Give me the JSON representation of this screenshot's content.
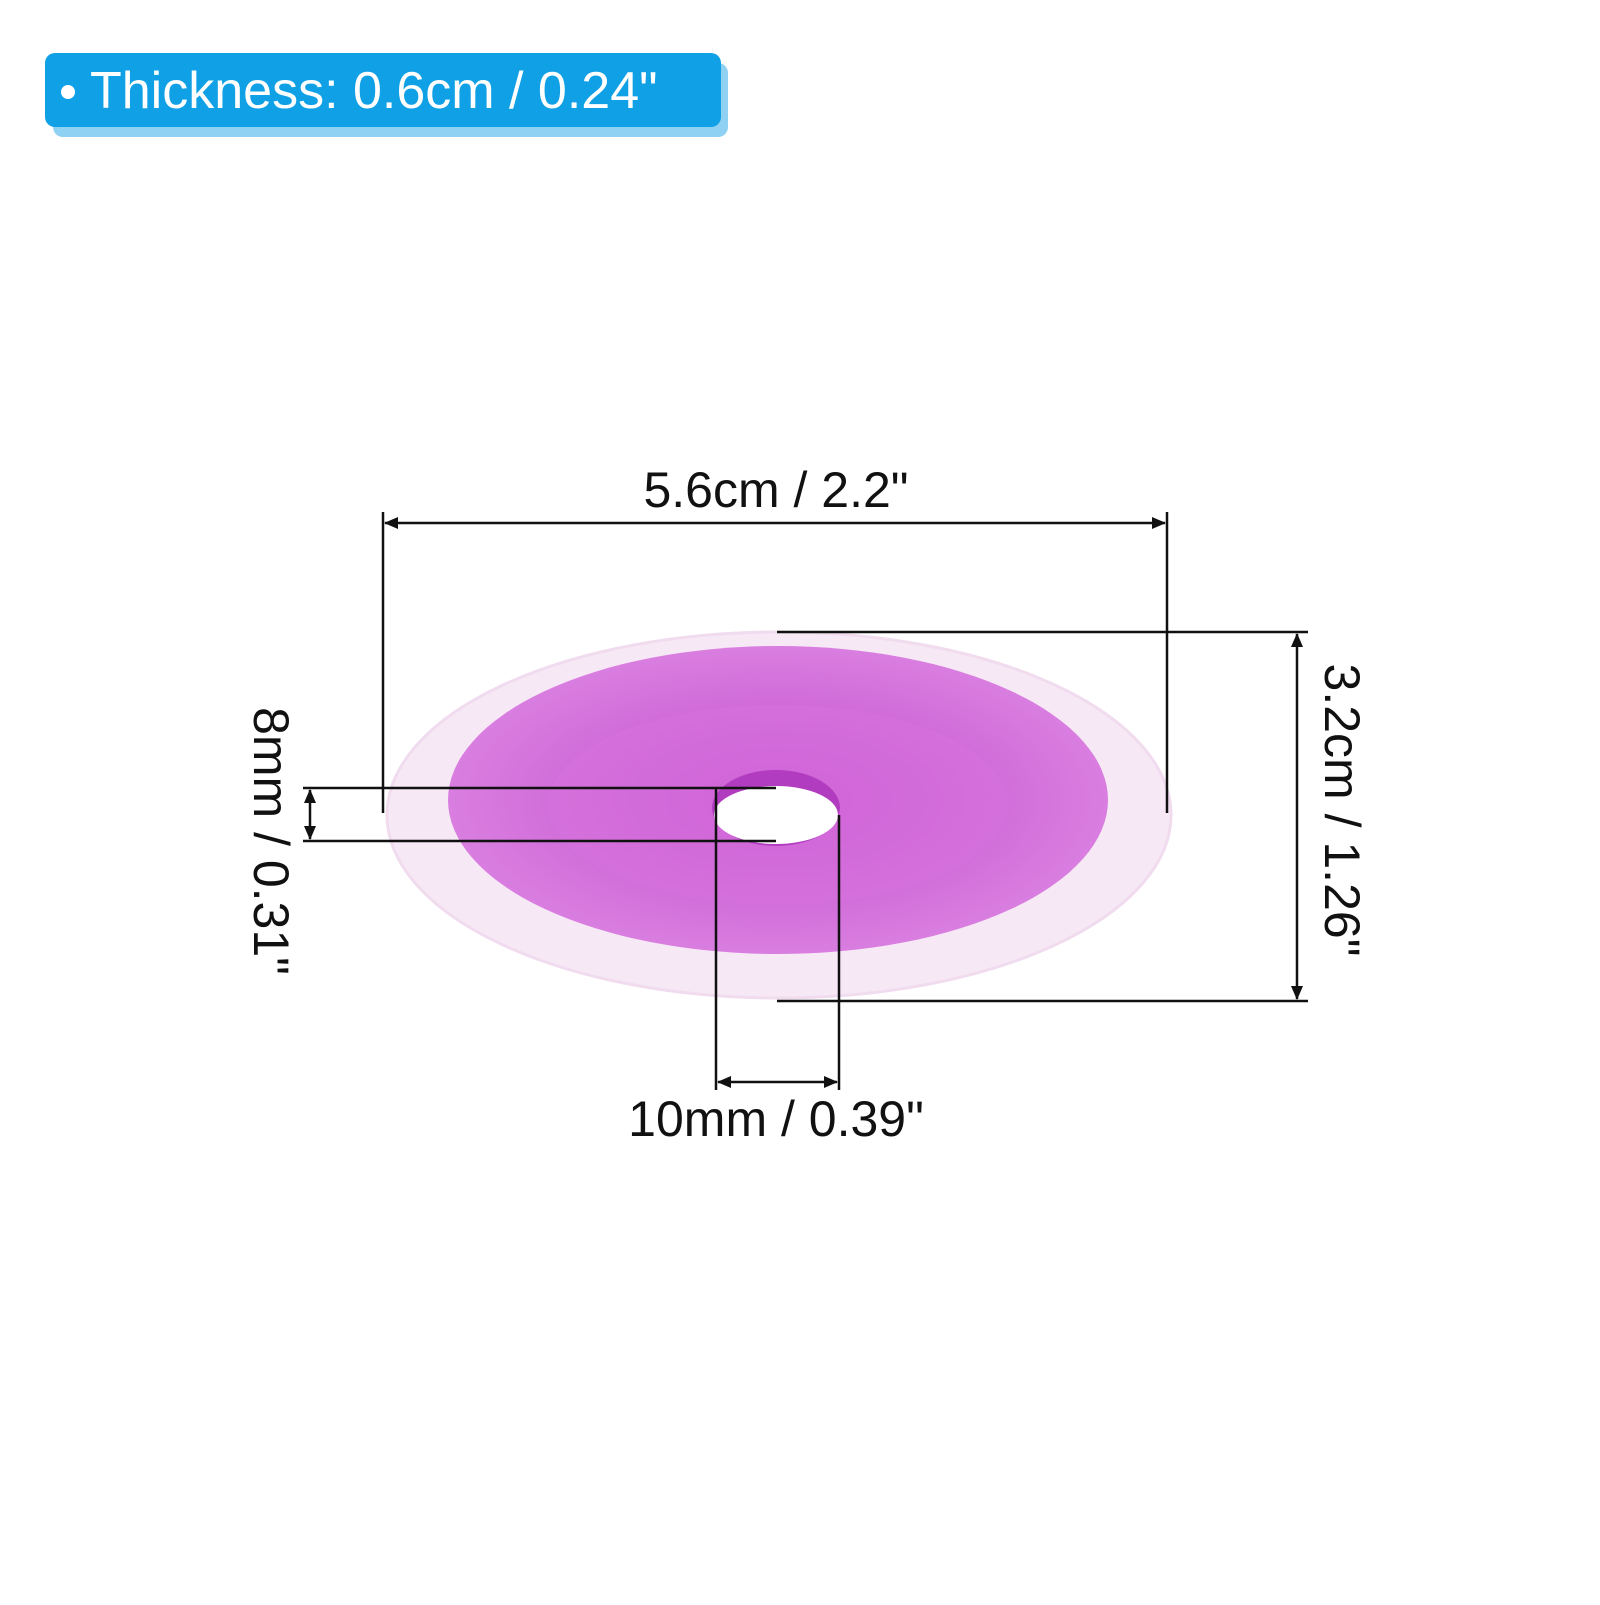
{
  "badge": {
    "text": "Thickness: 0.6cm / 0.24\""
  },
  "dimensions": {
    "width": "5.6cm / 2.2\"",
    "height": "3.2cm / 1.26\"",
    "inner_height": "8mm / 0.31\"",
    "hole_diameter": "10mm / 0.39\""
  }
}
